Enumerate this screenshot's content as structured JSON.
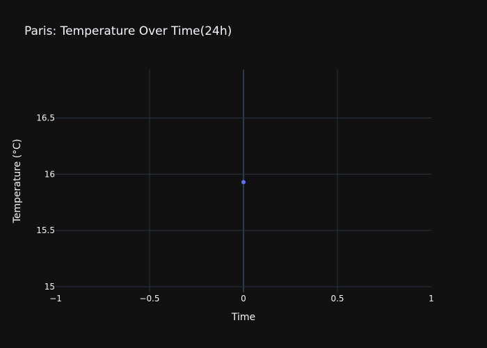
{
  "chart_data": {
    "type": "scatter",
    "title": "Paris: Temperature Over Time(24h)",
    "xlabel": "Time",
    "ylabel": "Temperature (°C)",
    "xlim": [
      -1,
      1
    ],
    "ylim": [
      14.95,
      16.93
    ],
    "x_ticks": [
      -1,
      -0.5,
      0,
      0.5,
      1
    ],
    "x_tick_labels": [
      "−1",
      "−0.5",
      "0",
      "0.5",
      "1"
    ],
    "y_ticks": [
      15,
      15.5,
      16,
      16.5
    ],
    "y_tick_labels": [
      "15",
      "15.5",
      "16",
      "16.5"
    ],
    "grid": true,
    "series": [
      {
        "color": "#636efa",
        "x": [
          0
        ],
        "y": [
          15.93
        ]
      }
    ]
  },
  "colors": {
    "background": "#111111",
    "grid": "#283442",
    "zeroline": "#506784",
    "text": "#f2f5fa",
    "marker": "#636efa"
  }
}
